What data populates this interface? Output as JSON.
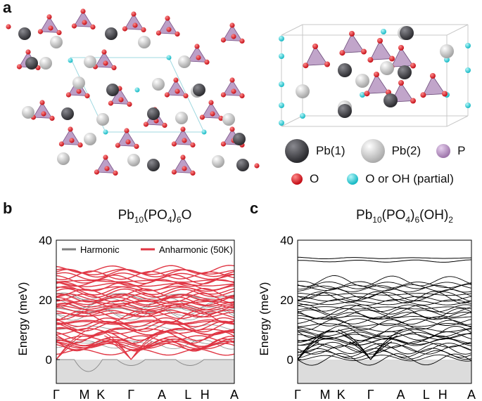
{
  "panels": {
    "a": {
      "letter": "a"
    },
    "b": {
      "letter": "b",
      "title_main": "Pb",
      "title_sub1": "10",
      "title_mid": "(PO",
      "title_sub2": "4",
      "title_end": ")",
      "title_sub3": "6",
      "title_tail": "O"
    },
    "c": {
      "letter": "c",
      "title_main": "Pb",
      "title_sub1": "10",
      "title_mid": "(PO",
      "title_sub2": "4",
      "title_end": ")",
      "title_sub3": "6",
      "title_tail": "(OH)",
      "title_sub4": "2"
    }
  },
  "atom_legend": [
    {
      "label": "Pb(1)",
      "color": "#3a3a3e"
    },
    {
      "label": "Pb(2)",
      "color": "#c8c8c8"
    },
    {
      "label": "P",
      "color": "#b48cc0"
    },
    {
      "label": "O",
      "color": "#d4141c"
    },
    {
      "label": "O or OH (partial)",
      "color": "#2fd0d8"
    }
  ],
  "chart_data": [
    {
      "type": "line",
      "panel": "b",
      "ylabel": "Energy (meV)",
      "yticks": [
        "0",
        "20",
        "40"
      ],
      "ylim": [
        -8,
        40
      ],
      "xticks": [
        "Γ",
        "M",
        "K",
        "Γ",
        "A",
        "L",
        "H",
        "A"
      ],
      "legend": [
        "Harmonic",
        "Anharmonic (50K)"
      ],
      "series": [
        {
          "name": "Harmonic",
          "color": "#7f7f7f"
        },
        {
          "name": "Anharmonic (50K)",
          "color": "#e03543"
        }
      ],
      "band_range": [
        3,
        30
      ],
      "band_count": 46,
      "imaginary_min": -5
    },
    {
      "type": "line",
      "panel": "c",
      "ylabel": "Energy (meV)",
      "yticks": [
        "0",
        "20",
        "40"
      ],
      "ylim": [
        -8,
        40
      ],
      "xticks": [
        "Γ",
        "M",
        "K",
        "Γ",
        "A",
        "L",
        "H",
        "A"
      ],
      "series": [
        {
          "color": "#000000"
        }
      ],
      "band_range": [
        0,
        26
      ],
      "band_count": 40,
      "top_band": 34
    }
  ]
}
